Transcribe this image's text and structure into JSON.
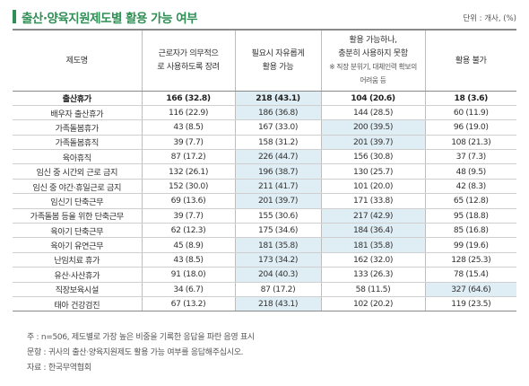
{
  "header": {
    "title": "출산·양육지원제도별 활용 가능 여부",
    "unit": "단위 : 개사, (%)"
  },
  "colors": {
    "title_green": "#2f8f55",
    "highlight_blue": "#dfedf4"
  },
  "table": {
    "headers": {
      "col0": "제도명",
      "col1_line1": "근로자가 의무적으",
      "col1_line2": "로 사용하도록 장려",
      "col2_line1": "필요시 자유롭게",
      "col2_line2": "활용 가능",
      "col3_line1": "활용 가능하나,",
      "col3_line2": "충분히 사용하지 못함",
      "col3_note_line1": "※ 직장 분위기, 대체인력 확보의",
      "col3_note_line2": "어려움 등",
      "col4": "활용 불가"
    },
    "rows": [
      {
        "name": "출산휴가",
        "c1": "166 (32.8)",
        "c2": "218 (43.1)",
        "c3": "104 (20.6)",
        "c4": "18 (3.6)",
        "hl": 2
      },
      {
        "name": "배우자 출산휴가",
        "c1": "116 (22.9)",
        "c2": "186 (36.8)",
        "c3": "144 (28.5)",
        "c4": "60 (11.9)",
        "hl": 2
      },
      {
        "name": "가족돌봄휴가",
        "c1": "43 (8.5)",
        "c2": "167 (33.0)",
        "c3": "200 (39.5)",
        "c4": "96 (19.0)",
        "hl": 3
      },
      {
        "name": "가족돌봄휴직",
        "c1": "39 (7.7)",
        "c2": "158 (31.2)",
        "c3": "201 (39.7)",
        "c4": "108 (21.3)",
        "hl": 3
      },
      {
        "name": "육아휴직",
        "c1": "87 (17.2)",
        "c2": "226 (44.7)",
        "c3": "156 (30.8)",
        "c4": "37 (7.3)",
        "hl": 2
      },
      {
        "name": "임신 중 시간외 근로 금지",
        "c1": "132 (26.1)",
        "c2": "196 (38.7)",
        "c3": "130 (25.7)",
        "c4": "48 (9.5)",
        "hl": 2
      },
      {
        "name": "임신 중 야간·휴일근로 금지",
        "c1": "152 (30.0)",
        "c2": "211 (41.7)",
        "c3": "101 (20.0)",
        "c4": "42 (8.3)",
        "hl": 2
      },
      {
        "name": "임신기 단축근무",
        "c1": "69 (13.6)",
        "c2": "201 (39.7)",
        "c3": "171 (33.8)",
        "c4": "65 (12.8)",
        "hl": 2
      },
      {
        "name": "가족돌봄 등을 위한 단축근무",
        "c1": "39 (7.7)",
        "c2": "155 (30.6)",
        "c3": "217 (42.9)",
        "c4": "95 (18.8)",
        "hl": 3
      },
      {
        "name": "육아기 단축근무",
        "c1": "62 (12.3)",
        "c2": "175 (34.6)",
        "c3": "184 (36.4)",
        "c4": "85 (16.8)",
        "hl": 3
      },
      {
        "name": "육아기 유연근무",
        "c1": "45 (8.9)",
        "c2": "181 (35.8)",
        "c3": "181 (35.8)",
        "c4": "99 (19.6)",
        "hl": 23
      },
      {
        "name": "난임치료 휴가",
        "c1": "43 (8.5)",
        "c2": "173 (34.2)",
        "c3": "162 (32.0)",
        "c4": "128 (25.3)",
        "hl": 2
      },
      {
        "name": "유산·사산휴가",
        "c1": "91 (18.0)",
        "c2": "204 (40.3)",
        "c3": "133 (26.3)",
        "c4": "78 (15.4)",
        "hl": 2
      },
      {
        "name": "직장보육시설",
        "c1": "34 (6.7)",
        "c2": "87 (17.2)",
        "c3": "58 (11.5)",
        "c4": "327 (64.6)",
        "hl": 4
      },
      {
        "name": "태아 건강검진",
        "c1": "67 (13.2)",
        "c2": "218 (43.1)",
        "c3": "102 (20.2)",
        "c4": "119 (23.5)",
        "hl": 2
      }
    ]
  },
  "footnotes": {
    "note": "주 : n=506, 제도별로 가장 높은 비중을 기록한 응답을 파란 음영 표시",
    "question": "문항 : 귀사의 출산·양육지원제도 활용 가능 여부를 응답해주십시오.",
    "source": "자료 : 한국무역협회"
  }
}
